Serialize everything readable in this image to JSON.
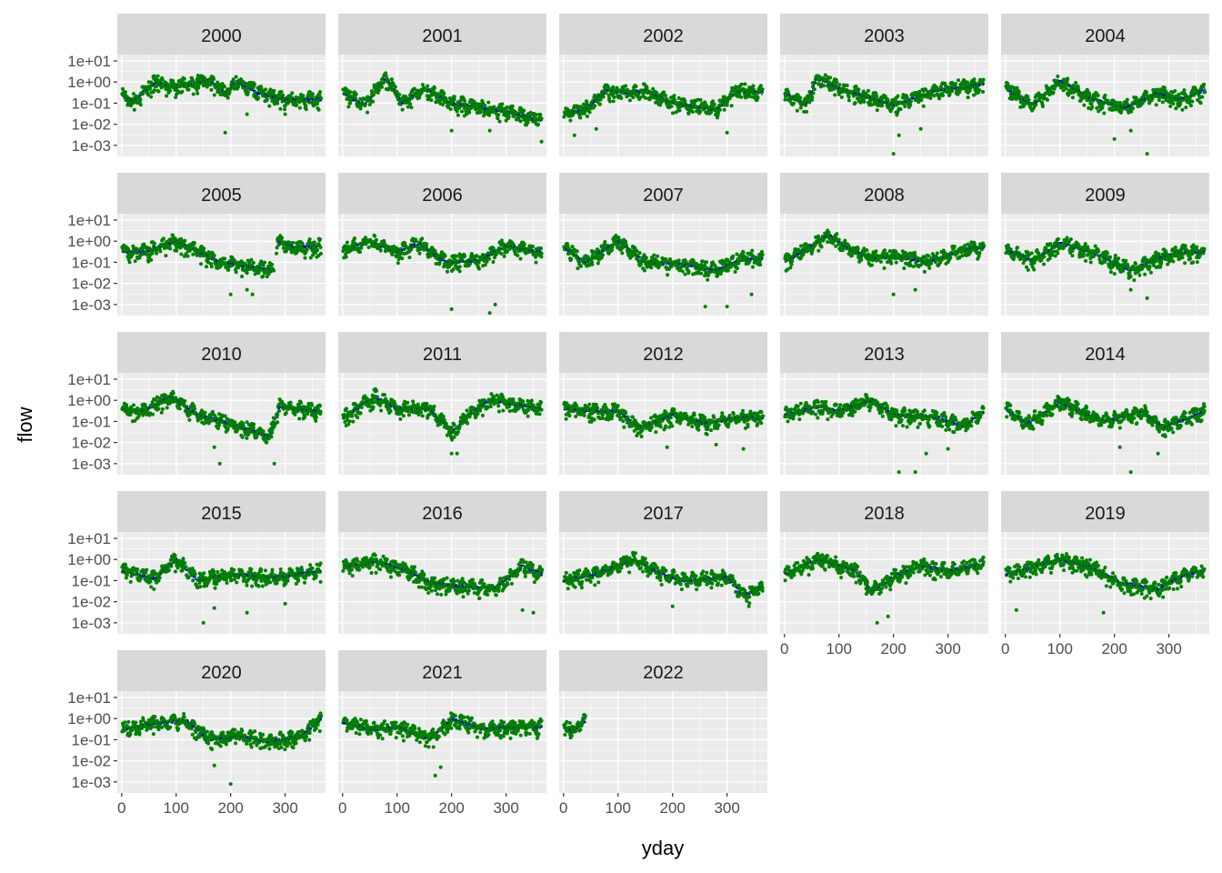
{
  "colors": {
    "panel_bg": "#EBEBEB",
    "strip_bg": "#D9D9D9",
    "grid_major": "#FFFFFF",
    "obs_points": "#008000",
    "model_points": "#0000CD"
  },
  "chart_data": {
    "type": "scatter",
    "layout": "facet_wrap",
    "facet_variable": "year",
    "facets": [
      "2000",
      "2001",
      "2002",
      "2003",
      "2004",
      "2005",
      "2006",
      "2007",
      "2008",
      "2009",
      "2010",
      "2011",
      "2012",
      "2013",
      "2014",
      "2015",
      "2016",
      "2017",
      "2018",
      "2019",
      "2020",
      "2021",
      "2022"
    ],
    "ncol": 5,
    "xlabel": "yday",
    "ylabel": "flow",
    "x_ticks": [
      0,
      100,
      200,
      300
    ],
    "x_tick_labels": [
      "0",
      "100",
      "200",
      "300"
    ],
    "xlim": [
      -8,
      374
    ],
    "y_scale": "log10",
    "y_ticks": [
      10,
      1,
      0.1,
      0.01,
      0.001
    ],
    "y_tick_labels": [
      "1e+01",
      "1e+00",
      "1e-01",
      "1e-02",
      "1e-03"
    ],
    "ylim": [
      0.0003,
      20
    ],
    "grid": true,
    "legend": "none",
    "series": [
      {
        "color": "#008000",
        "marker": "point"
      },
      {
        "color": "#0000CD",
        "marker": "small-point"
      }
    ],
    "year_profiles": {
      "2000": {
        "days": 366,
        "knots": [
          [
            0,
            0.25
          ],
          [
            20,
            0.12
          ],
          [
            60,
            0.9
          ],
          [
            100,
            0.6
          ],
          [
            160,
            1.2
          ],
          [
            190,
            0.3
          ],
          [
            210,
            1.0
          ],
          [
            250,
            0.3
          ],
          [
            300,
            0.15
          ],
          [
            366,
            0.15
          ]
        ],
        "dips": [
          [
            190,
            0.004
          ],
          [
            230,
            0.03
          ],
          [
            300,
            0.03
          ]
        ]
      },
      "2001": {
        "days": 365,
        "knots": [
          [
            0,
            0.3
          ],
          [
            40,
            0.08
          ],
          [
            80,
            1.5
          ],
          [
            110,
            0.1
          ],
          [
            150,
            0.5
          ],
          [
            200,
            0.1
          ],
          [
            300,
            0.04
          ],
          [
            365,
            0.015
          ]
        ],
        "dips": [
          [
            200,
            0.005
          ],
          [
            270,
            0.005
          ],
          [
            365,
            0.0015
          ]
        ]
      },
      "2002": {
        "days": 365,
        "knots": [
          [
            0,
            0.03
          ],
          [
            40,
            0.05
          ],
          [
            80,
            0.4
          ],
          [
            120,
            0.3
          ],
          [
            150,
            0.4
          ],
          [
            200,
            0.1
          ],
          [
            280,
            0.05
          ],
          [
            320,
            0.4
          ],
          [
            365,
            0.3
          ]
        ],
        "dips": [
          [
            20,
            0.003
          ],
          [
            60,
            0.006
          ],
          [
            300,
            0.004
          ]
        ]
      },
      "2003": {
        "days": 365,
        "knots": [
          [
            0,
            0.3
          ],
          [
            40,
            0.08
          ],
          [
            60,
            1.5
          ],
          [
            100,
            0.5
          ],
          [
            200,
            0.08
          ],
          [
            230,
            0.15
          ],
          [
            280,
            0.4
          ],
          [
            365,
            0.8
          ]
        ],
        "dips": [
          [
            200,
            0.0004
          ],
          [
            210,
            0.003
          ],
          [
            250,
            0.006
          ]
        ]
      },
      "2004": {
        "days": 366,
        "knots": [
          [
            0,
            0.5
          ],
          [
            50,
            0.08
          ],
          [
            100,
            1.2
          ],
          [
            160,
            0.15
          ],
          [
            220,
            0.06
          ],
          [
            280,
            0.3
          ],
          [
            320,
            0.15
          ],
          [
            366,
            0.4
          ]
        ],
        "dips": [
          [
            200,
            0.002
          ],
          [
            230,
            0.005
          ],
          [
            260,
            0.0004
          ]
        ]
      },
      "2005": {
        "days": 365,
        "knots": [
          [
            0,
            0.3
          ],
          [
            40,
            0.3
          ],
          [
            100,
            1.0
          ],
          [
            180,
            0.1
          ],
          [
            280,
            0.04
          ],
          [
            285,
            1.0
          ],
          [
            320,
            0.5
          ],
          [
            365,
            0.6
          ]
        ],
        "dips": [
          [
            200,
            0.003
          ],
          [
            230,
            0.005
          ],
          [
            240,
            0.003
          ]
        ],
        "gap": [
          280,
          283
        ]
      },
      "2006": {
        "days": 365,
        "knots": [
          [
            0,
            0.4
          ],
          [
            50,
            1.0
          ],
          [
            100,
            0.3
          ],
          [
            140,
            0.8
          ],
          [
            190,
            0.1
          ],
          [
            250,
            0.12
          ],
          [
            300,
            0.6
          ],
          [
            365,
            0.3
          ]
        ],
        "dips": [
          [
            200,
            0.0006
          ],
          [
            270,
            0.0004
          ],
          [
            280,
            0.001
          ]
        ]
      },
      "2007": {
        "days": 365,
        "knots": [
          [
            0,
            0.5
          ],
          [
            40,
            0.1
          ],
          [
            100,
            1.0
          ],
          [
            150,
            0.1
          ],
          [
            220,
            0.08
          ],
          [
            280,
            0.04
          ],
          [
            330,
            0.15
          ],
          [
            365,
            0.15
          ]
        ],
        "dips": [
          [
            260,
            0.0008
          ],
          [
            300,
            0.0008
          ],
          [
            345,
            0.003
          ]
        ]
      },
      "2008": {
        "days": 366,
        "knots": [
          [
            0,
            0.1
          ],
          [
            40,
            0.4
          ],
          [
            80,
            2.0
          ],
          [
            120,
            0.4
          ],
          [
            160,
            0.15
          ],
          [
            210,
            0.2
          ],
          [
            260,
            0.1
          ],
          [
            330,
            0.4
          ],
          [
            366,
            0.5
          ]
        ],
        "dips": [
          [
            200,
            0.003
          ],
          [
            240,
            0.005
          ]
        ]
      },
      "2009": {
        "days": 365,
        "knots": [
          [
            0,
            0.4
          ],
          [
            50,
            0.12
          ],
          [
            100,
            0.8
          ],
          [
            160,
            0.3
          ],
          [
            230,
            0.04
          ],
          [
            280,
            0.15
          ],
          [
            320,
            0.3
          ],
          [
            365,
            0.3
          ]
        ],
        "dips": [
          [
            230,
            0.005
          ],
          [
            260,
            0.002
          ]
        ]
      },
      "2010": {
        "days": 365,
        "knots": [
          [
            0,
            0.4
          ],
          [
            40,
            0.3
          ],
          [
            90,
            1.5
          ],
          [
            140,
            0.2
          ],
          [
            200,
            0.08
          ],
          [
            270,
            0.02
          ],
          [
            290,
            0.5
          ],
          [
            365,
            0.3
          ]
        ],
        "dips": [
          [
            170,
            0.006
          ],
          [
            180,
            0.001
          ],
          [
            280,
            0.001
          ]
        ]
      },
      "2011": {
        "days": 365,
        "knots": [
          [
            0,
            0.15
          ],
          [
            60,
            1.5
          ],
          [
            100,
            0.4
          ],
          [
            160,
            0.4
          ],
          [
            200,
            0.03
          ],
          [
            230,
            0.2
          ],
          [
            270,
            1.0
          ],
          [
            365,
            0.4
          ]
        ],
        "dips": [
          [
            200,
            0.003
          ],
          [
            210,
            0.003
          ]
        ]
      },
      "2012": {
        "days": 366,
        "knots": [
          [
            0,
            0.4
          ],
          [
            60,
            0.3
          ],
          [
            100,
            0.3
          ],
          [
            140,
            0.05
          ],
          [
            200,
            0.2
          ],
          [
            260,
            0.08
          ],
          [
            320,
            0.15
          ],
          [
            366,
            0.15
          ]
        ],
        "dips": [
          [
            190,
            0.006
          ],
          [
            280,
            0.008
          ],
          [
            330,
            0.005
          ]
        ]
      },
      "2013": {
        "days": 365,
        "knots": [
          [
            0,
            0.2
          ],
          [
            60,
            0.5
          ],
          [
            100,
            0.3
          ],
          [
            160,
            1.0
          ],
          [
            200,
            0.2
          ],
          [
            280,
            0.15
          ],
          [
            330,
            0.06
          ],
          [
            365,
            0.3
          ]
        ],
        "dips": [
          [
            210,
            0.0004
          ],
          [
            240,
            0.0004
          ],
          [
            260,
            0.003
          ],
          [
            300,
            0.005
          ]
        ]
      },
      "2014": {
        "days": 365,
        "knots": [
          [
            0,
            0.4
          ],
          [
            40,
            0.08
          ],
          [
            100,
            0.8
          ],
          [
            180,
            0.1
          ],
          [
            250,
            0.3
          ],
          [
            290,
            0.05
          ],
          [
            365,
            0.3
          ]
        ],
        "dips": [
          [
            210,
            0.006
          ],
          [
            230,
            0.0004
          ],
          [
            280,
            0.003
          ]
        ]
      },
      "2015": {
        "days": 365,
        "knots": [
          [
            0,
            0.3
          ],
          [
            60,
            0.12
          ],
          [
            100,
            1.0
          ],
          [
            140,
            0.1
          ],
          [
            200,
            0.2
          ],
          [
            260,
            0.15
          ],
          [
            300,
            0.15
          ],
          [
            365,
            0.3
          ]
        ],
        "dips": [
          [
            150,
            0.001
          ],
          [
            170,
            0.005
          ],
          [
            230,
            0.003
          ],
          [
            300,
            0.008
          ]
        ]
      },
      "2016": {
        "days": 366,
        "knots": [
          [
            0,
            0.4
          ],
          [
            60,
            0.8
          ],
          [
            120,
            0.3
          ],
          [
            160,
            0.08
          ],
          [
            200,
            0.06
          ],
          [
            280,
            0.04
          ],
          [
            330,
            0.5
          ],
          [
            366,
            0.2
          ]
        ],
        "dips": [
          [
            330,
            0.004
          ],
          [
            350,
            0.003
          ]
        ]
      },
      "2017": {
        "days": 365,
        "knots": [
          [
            0,
            0.1
          ],
          [
            60,
            0.2
          ],
          [
            130,
            1.0
          ],
          [
            180,
            0.2
          ],
          [
            220,
            0.1
          ],
          [
            300,
            0.15
          ],
          [
            330,
            0.02
          ],
          [
            365,
            0.05
          ]
        ],
        "dips": [
          [
            200,
            0.006
          ],
          [
            340,
            0.006
          ]
        ]
      },
      "2018": {
        "days": 365,
        "knots": [
          [
            0,
            0.2
          ],
          [
            60,
            1.0
          ],
          [
            130,
            0.3
          ],
          [
            160,
            0.03
          ],
          [
            200,
            0.15
          ],
          [
            250,
            0.5
          ],
          [
            300,
            0.3
          ],
          [
            365,
            0.6
          ]
        ],
        "dips": [
          [
            170,
            0.001
          ],
          [
            190,
            0.002
          ]
        ]
      },
      "2019": {
        "days": 365,
        "knots": [
          [
            0,
            0.2
          ],
          [
            30,
            0.3
          ],
          [
            100,
            1.0
          ],
          [
            160,
            0.4
          ],
          [
            210,
            0.08
          ],
          [
            280,
            0.04
          ],
          [
            320,
            0.15
          ],
          [
            365,
            0.3
          ]
        ],
        "dips": [
          [
            20,
            0.004
          ],
          [
            180,
            0.003
          ]
        ]
      },
      "2020": {
        "days": 366,
        "knots": [
          [
            0,
            0.3
          ],
          [
            60,
            0.6
          ],
          [
            120,
            0.8
          ],
          [
            160,
            0.1
          ],
          [
            220,
            0.15
          ],
          [
            270,
            0.08
          ],
          [
            330,
            0.15
          ],
          [
            366,
            1.0
          ]
        ],
        "dips": [
          [
            200,
            0.0008
          ],
          [
            170,
            0.006
          ]
        ]
      },
      "2021": {
        "days": 365,
        "knots": [
          [
            0,
            0.6
          ],
          [
            60,
            0.3
          ],
          [
            100,
            0.4
          ],
          [
            160,
            0.1
          ],
          [
            200,
            1.0
          ],
          [
            260,
            0.3
          ],
          [
            300,
            0.4
          ],
          [
            365,
            0.4
          ]
        ],
        "dips": [
          [
            170,
            0.002
          ],
          [
            180,
            0.005
          ]
        ]
      },
      "2022": {
        "days": 40,
        "knots": [
          [
            0,
            0.35
          ],
          [
            10,
            0.3
          ],
          [
            20,
            0.25
          ],
          [
            30,
            0.5
          ],
          [
            35,
            1.3
          ],
          [
            40,
            0.6
          ]
        ],
        "dips": []
      }
    }
  }
}
